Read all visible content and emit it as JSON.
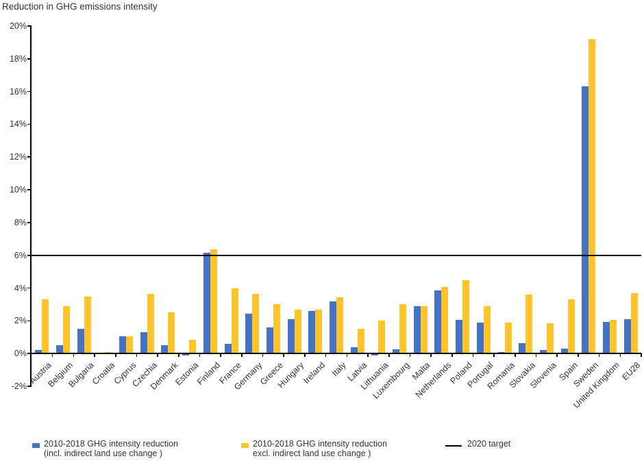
{
  "title": "Reduction in GHG emissions intensity",
  "colors": {
    "incl": "#4472C4",
    "excl": "#FFC32B",
    "target": "#000000",
    "text": "#333333",
    "axis": "#000000"
  },
  "legend": {
    "items": [
      {
        "key": "incl",
        "line1": "2010-2018 GHG intensity reduction",
        "line2": "(incl. indirect land use change )"
      },
      {
        "key": "excl",
        "line1": "2010-2018 GHG intensity reduction",
        "line2": "excl. indirect land use change )"
      },
      {
        "key": "target",
        "line1": "2020 target",
        "line2": ""
      }
    ]
  },
  "chart_data": {
    "type": "bar",
    "title": "Reduction in GHG emissions intensity",
    "categories": [
      "Austria",
      "Belgium",
      "Bulgaria",
      "Croatia",
      "Cyprus",
      "Czechia",
      "Denmark",
      "Estonia",
      "Finland",
      "France",
      "Germany",
      "Greece",
      "Hungary",
      "Ireland",
      "Italy",
      "Latvia",
      "Lithuania",
      "Luxembourg",
      "Malta",
      "Netherlands",
      "Poland",
      "Portugal",
      "Romania",
      "Slovakia",
      "Slovenia",
      "Spain",
      "Sweden",
      "United Kingdom",
      "EU28"
    ],
    "series": [
      {
        "name": "2010-2018 GHG intensity reduction (incl. indirect land use change )",
        "color": "#4472C4",
        "values": [
          0.2,
          0.5,
          1.5,
          0.05,
          1.05,
          1.3,
          0.5,
          -0.1,
          6.15,
          0.6,
          2.45,
          1.6,
          2.1,
          2.6,
          3.2,
          0.4,
          -0.1,
          0.25,
          2.9,
          3.85,
          2.05,
          1.9,
          0.1,
          0.65,
          0.2,
          0.3,
          16.3,
          1.95,
          2.1
        ]
      },
      {
        "name": "2010-2018 GHG intensity reduction excl. indirect land use change )",
        "color": "#FFC32B",
        "values": [
          3.3,
          2.9,
          3.5,
          0.1,
          1.05,
          3.65,
          2.5,
          0.85,
          6.35,
          4.0,
          3.65,
          3.0,
          2.7,
          2.7,
          3.45,
          1.5,
          2.0,
          3.0,
          2.9,
          4.05,
          4.5,
          2.9,
          1.9,
          3.6,
          1.85,
          3.3,
          19.2,
          2.05,
          3.7
        ]
      }
    ],
    "target_line": {
      "label": "2020 target",
      "value": 6,
      "color": "#000000"
    },
    "ylim": [
      -2,
      20
    ],
    "ytick_step": 2,
    "ytick_format": "percent",
    "grid": false,
    "legend_position": "bottom"
  }
}
